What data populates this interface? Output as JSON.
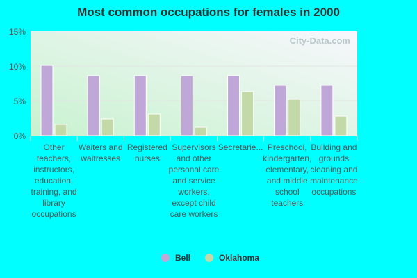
{
  "chart_data": {
    "type": "bar",
    "title": "Most common occupations for females in 2000",
    "categories": [
      "Other teachers, instructors, education, training, and library occupations",
      "Waiters and waitresses",
      "Registered nurses",
      "Supervisors and other personal care and service workers, except child care workers",
      "Secretarie...",
      "Preschool, kindergarten, elementary, and middle school teachers",
      "Building and grounds cleaning and maintenance occupations"
    ],
    "series": [
      {
        "name": "Bell",
        "color": "#bfa8d8",
        "values": [
          10.1,
          8.6,
          8.6,
          8.6,
          8.6,
          7.2,
          7.2
        ]
      },
      {
        "name": "Oklahoma",
        "color": "#c4d9a8",
        "values": [
          1.6,
          2.4,
          3.1,
          1.2,
          6.3,
          5.2,
          2.8
        ]
      }
    ],
    "yticks": [
      "0%",
      "5%",
      "10%",
      "15%"
    ],
    "ylim": [
      0,
      15
    ],
    "grid": true,
    "legend": "bottom",
    "watermark": "City-Data.com"
  }
}
